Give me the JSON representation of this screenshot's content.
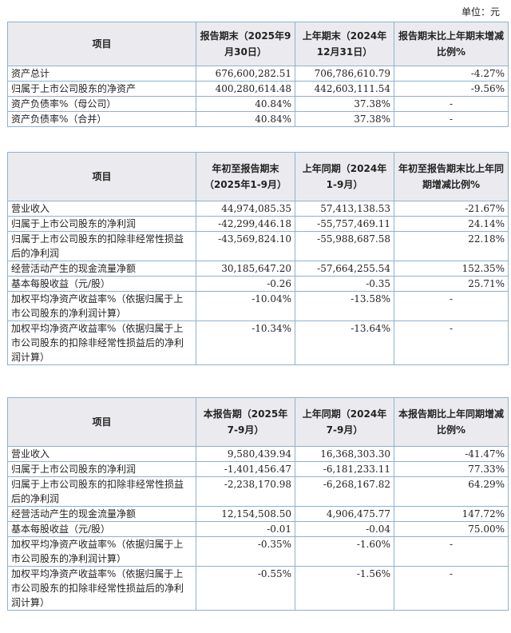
{
  "unit": "单位：元",
  "table1": {
    "headers": [
      "项目",
      "报告期末（2025年9月30日）",
      "上年期末（2024年12月31日）",
      "报告期末比上年期末增减比例%"
    ],
    "rows": [
      [
        "资产总计",
        "676,600,282.51",
        "706,786,610.79",
        "-4.27%"
      ],
      [
        "归属于上市公司股东的净资产",
        "400,280,614.48",
        "442,603,111.54",
        "-9.56%"
      ],
      [
        "资产负债率%（母公司）",
        "40.84%",
        "37.38%",
        "-"
      ],
      [
        "资产负债率%（合并）",
        "40.84%",
        "37.38%",
        "-"
      ]
    ]
  },
  "table2": {
    "headers": [
      "项目",
      "年初至报告期末（2025年1-9月）",
      "上年同期（2024年1-9月）",
      "年初至报告期末比上年同期增减比例%"
    ],
    "rows": [
      [
        "营业收入",
        "44,974,085.35",
        "57,413,138.53",
        "-21.67%"
      ],
      [
        "归属于上市公司股东的净利润",
        "-42,299,446.18",
        "-55,757,469.11",
        "24.14%"
      ],
      [
        "归属于上市公司股东的扣除非经常性损益后的净利润",
        "-43,569,824.10",
        "-55,988,687.58",
        "22.18%"
      ],
      [
        "经营活动产生的现金流量净额",
        "30,185,647.20",
        "-57,664,255.54",
        "152.35%"
      ],
      [
        "基本每股收益（元/股）",
        "-0.26",
        "-0.35",
        "25.71%"
      ],
      [
        "加权平均净资产收益率%（依据归属于上市公司股东的净利润计算）",
        "-10.04%",
        "-13.58%",
        "-"
      ],
      [
        "加权平均净资产收益率%（依据归属于上市公司股东的扣除非经常性损益后的净利润计算）",
        "-10.34%",
        "-13.64%",
        "-"
      ]
    ]
  },
  "table3": {
    "headers": [
      "项目",
      "本报告期（2025年7-9月）",
      "上年同期（2024年7-9月）",
      "本报告期比上年同期增减比例%"
    ],
    "rows": [
      [
        "营业收入",
        "9,580,439.94",
        "16,368,303.30",
        "-41.47%"
      ],
      [
        "归属于上市公司股东的净利润",
        "-1,401,456.47",
        "-6,181,233.11",
        "77.33%"
      ],
      [
        "归属于上市公司股东的扣除非经常性损益后的净利润",
        "-2,238,170.98",
        "-6,268,167.82",
        "64.29%"
      ],
      [
        "经营活动产生的现金流量净额",
        "12,154,508.50",
        "4,906,475.77",
        "147.72%"
      ],
      [
        "基本每股收益（元/股）",
        "-0.01",
        "-0.04",
        "75.00%"
      ],
      [
        "加权平均净资产收益率%（依据归属于上市公司股东的净利润计算）",
        "-0.35%",
        "-1.60%",
        "-"
      ],
      [
        "加权平均净资产收益率%（依据归属于上市公司股东的扣除非经常性损益后的净利润计算）",
        "-0.55%",
        "-1.56%",
        "-"
      ]
    ]
  }
}
